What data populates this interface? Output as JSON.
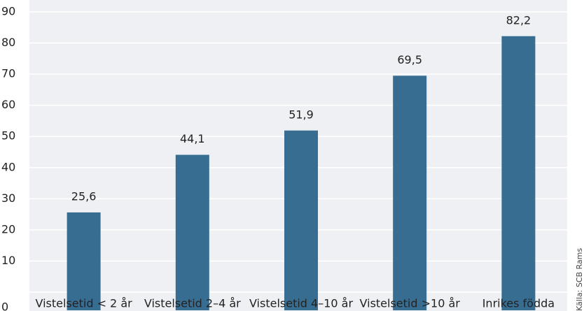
{
  "chart_data": {
    "type": "bar",
    "categories": [
      "Vistelsetid < 2 år",
      "Vistelsetid 2–4 år",
      "Vistelsetid 4–10 år",
      "Vistelsetid >10 år",
      "Inrikes födda"
    ],
    "values": [
      25.6,
      44.1,
      51.9,
      69.5,
      82.2
    ],
    "value_labels": [
      "25,6",
      "44,1",
      "51,9",
      "69,5",
      "82,2"
    ],
    "color": "#386d92",
    "ylim": [
      0,
      90
    ],
    "yticks": [
      0,
      10,
      20,
      30,
      40,
      50,
      60,
      70,
      80,
      90
    ],
    "grid": true,
    "source": "Källa: SCB Rams"
  }
}
